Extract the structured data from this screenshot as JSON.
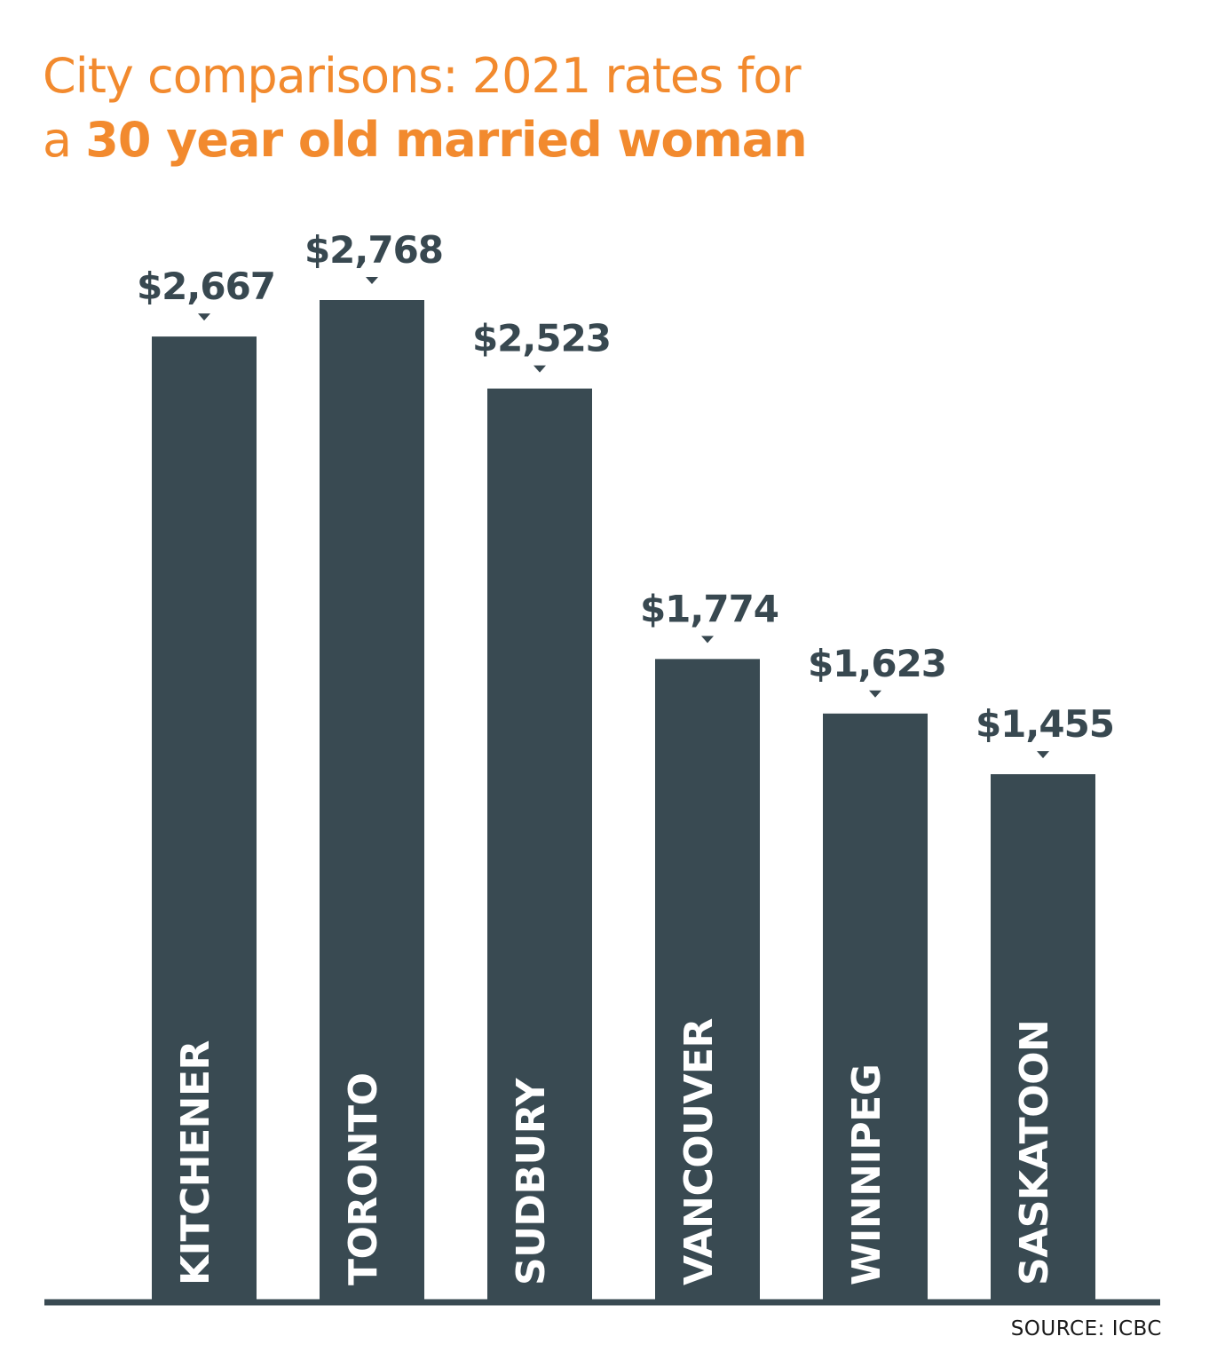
{
  "header": {
    "title_line1": "City comparisons: 2021 rates for",
    "title_line2_prefix": "a ",
    "title_line2_bold": "30 year old married woman"
  },
  "source": "SOURCE: ICBC",
  "colors": {
    "accent": "#f28a2e",
    "bar": "#394a52",
    "text_dark": "#384850",
    "bar_label": "#ffffff",
    "source_text": "#1a1a1a"
  },
  "chart_data": {
    "type": "bar",
    "title": "City comparisons: 2021 rates for a 30 year old married woman",
    "categories": [
      "KITCHENER",
      "TORONTO",
      "SUDBURY",
      "VANCOUVER",
      "WINNIPEG",
      "SASKATOON"
    ],
    "values": [
      2667,
      2768,
      2523,
      1774,
      1623,
      1455
    ],
    "value_labels": [
      "$2,667",
      "$2,768",
      "$2,523",
      "$1,774",
      "$1,623",
      "$1,455"
    ],
    "xlabel": "",
    "ylabel": "",
    "ylim": [
      0,
      2768
    ],
    "grid": false,
    "legend": "none"
  }
}
